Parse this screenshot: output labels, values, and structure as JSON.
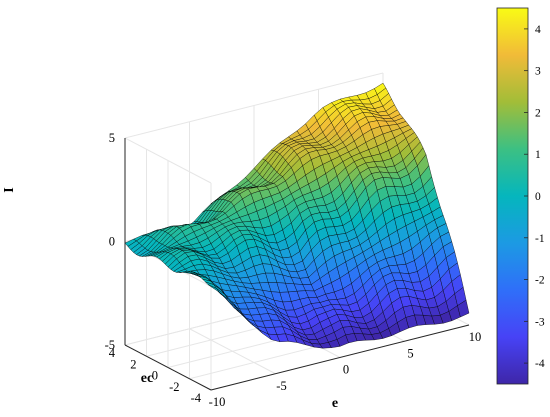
{
  "chart_data": {
    "type": "surface",
    "xlabel": "e",
    "ylabel": "ec",
    "zlabel": "I",
    "xlim": [
      -10,
      10
    ],
    "ylim": [
      -4,
      4
    ],
    "zlim": [
      -5,
      5
    ],
    "x_ticks": [
      "-10",
      "-5",
      "0",
      "5",
      "10"
    ],
    "y_ticks": [
      "-4",
      "-2",
      "0",
      "2",
      "4"
    ],
    "z_ticks": [
      "-5",
      "0",
      "5"
    ],
    "grid": true,
    "colormap": "parula",
    "colorbar": {
      "placement": "right",
      "range": [
        -4.5,
        4.5
      ],
      "ticks": [
        "4",
        "3",
        "2",
        "1",
        "0",
        "-1",
        "-2",
        "-3",
        "-4"
      ]
    },
    "surface_samples": {
      "e": [
        -10,
        -5,
        0,
        5,
        10
      ],
      "ec": [
        -4,
        -2,
        0,
        2,
        4
      ],
      "I": [
        [
          0,
          -3.5,
          -4.5,
          -4.5,
          -4.5
        ],
        [
          0,
          -2,
          -3,
          -2,
          -1
        ],
        [
          0,
          0,
          -0.5,
          1,
          2
        ],
        [
          0,
          1,
          2,
          3,
          3.5
        ],
        [
          0,
          0,
          2,
          4,
          4.5
        ]
      ]
    }
  },
  "colors": {
    "parula": [
      "#3e26a8",
      "#4743f6",
      "#2f6ff9",
      "#1c9ae3",
      "#05b6bd",
      "#3cc083",
      "#a2bd38",
      "#f1bb38",
      "#f9fb15"
    ],
    "axis": "#262626",
    "grid": "#e6e6e6",
    "mesh": "#000000"
  }
}
